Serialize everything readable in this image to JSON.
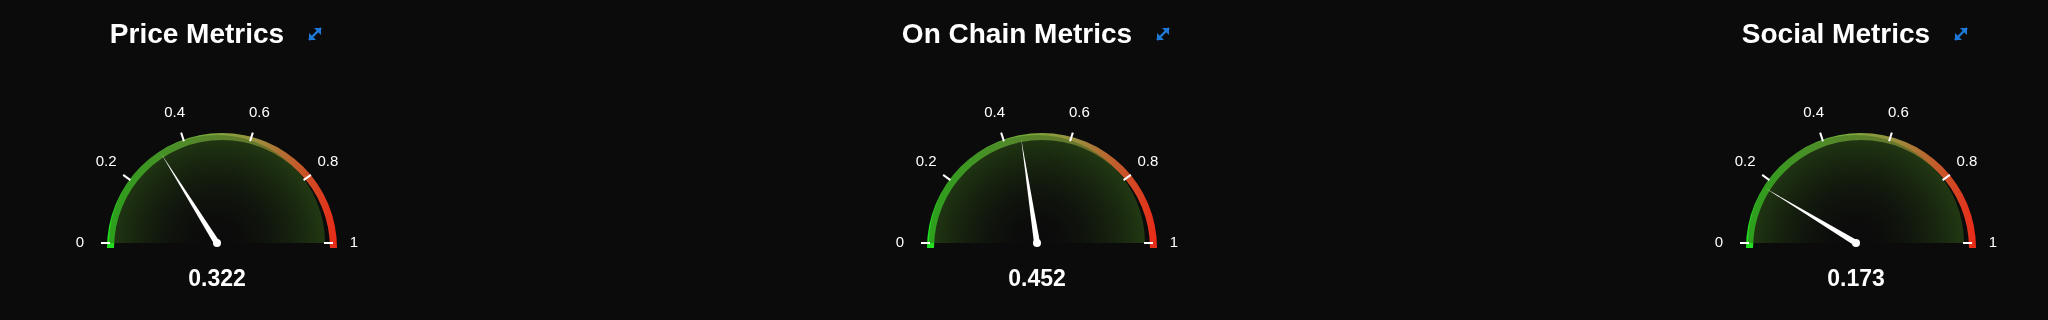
{
  "chart_data": [
    {
      "type": "other",
      "title": "Price Metrics",
      "values": [
        0.322
      ],
      "data_labels": true,
      "annotations": [
        "0",
        "0.2",
        "0.4",
        "0.6",
        "0.8",
        "1"
      ]
    },
    {
      "type": "other",
      "title": "On Chain Metrics",
      "values": [
        0.452
      ],
      "data_labels": true,
      "annotations": [
        "0",
        "0.2",
        "0.4",
        "0.6",
        "0.8",
        "1"
      ]
    },
    {
      "type": "other",
      "title": "Social Metrics",
      "values": [
        0.173
      ],
      "data_labels": true,
      "annotations": [
        "0",
        "0.2",
        "0.4",
        "0.6",
        "0.8",
        "1"
      ]
    }
  ]
}
